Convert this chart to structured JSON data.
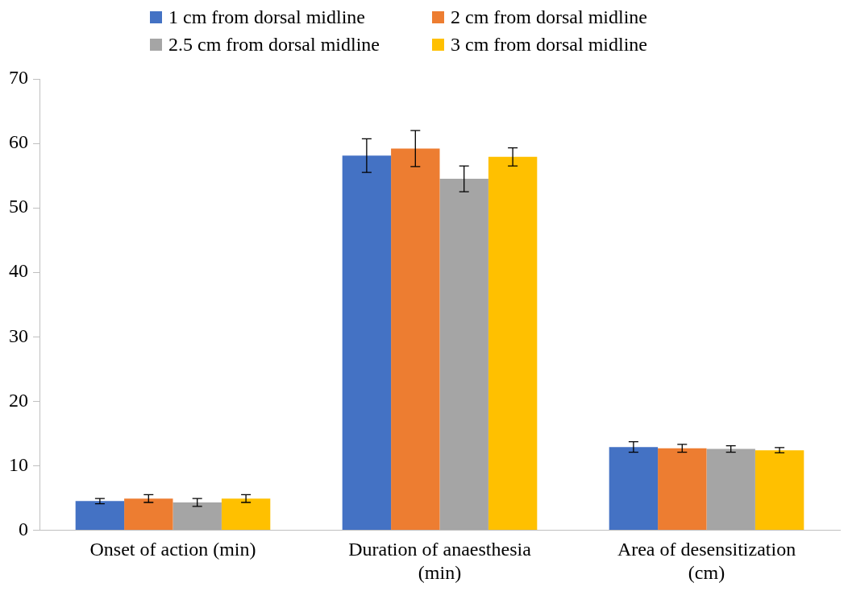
{
  "chart_data": {
    "type": "bar",
    "categories": [
      "Onset of action (min)",
      "Duration of anaesthesia (min)",
      "Area of desensitization (cm)"
    ],
    "series": [
      {
        "name": "1 cm from dorsal midline",
        "color": "#4472c4",
        "values": [
          4.5,
          58.1,
          12.9
        ],
        "errors": [
          0.4,
          2.6,
          0.8
        ]
      },
      {
        "name": "2 cm from dorsal midline",
        "color": "#ed7d31",
        "values": [
          4.9,
          59.2,
          12.7
        ],
        "errors": [
          0.6,
          2.8,
          0.6
        ]
      },
      {
        "name": "2.5 cm from dorsal midline",
        "color": "#a5a5a5",
        "values": [
          4.3,
          54.5,
          12.6
        ],
        "errors": [
          0.6,
          2.0,
          0.5
        ]
      },
      {
        "name": "3 cm from dorsal midline",
        "color": "#ffc000",
        "values": [
          4.9,
          57.9,
          12.4
        ],
        "errors": [
          0.6,
          1.4,
          0.4
        ]
      }
    ],
    "ylim": [
      0,
      70
    ],
    "yticks": [
      0,
      10,
      20,
      30,
      40,
      50,
      60,
      70
    ],
    "grid": false,
    "legend": "top"
  }
}
